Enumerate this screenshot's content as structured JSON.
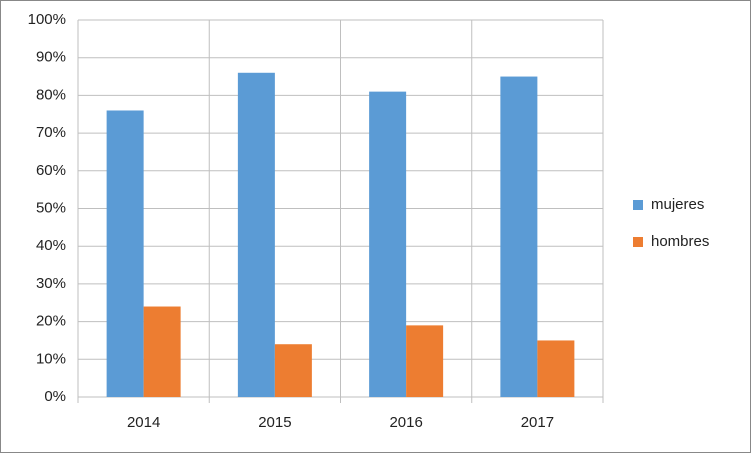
{
  "chart_data": {
    "type": "bar",
    "categories": [
      "2014",
      "2015",
      "2016",
      "2017"
    ],
    "series": [
      {
        "name": "mujeres",
        "color": "#5b9bd5",
        "values": [
          76,
          86,
          81,
          85
        ]
      },
      {
        "name": "hombres",
        "color": "#ed7d31",
        "values": [
          24,
          14,
          19,
          15
        ]
      }
    ],
    "ylim": [
      0,
      100
    ],
    "yticks": [
      {
        "value": 0,
        "label": "0%"
      },
      {
        "value": 10,
        "label": "10%"
      },
      {
        "value": 20,
        "label": "20%"
      },
      {
        "value": 30,
        "label": "30%"
      },
      {
        "value": 40,
        "label": "40%"
      },
      {
        "value": 50,
        "label": "50%"
      },
      {
        "value": 60,
        "label": "60%"
      },
      {
        "value": 70,
        "label": "70%"
      },
      {
        "value": 80,
        "label": "80%"
      },
      {
        "value": 90,
        "label": "90%"
      },
      {
        "value": 100,
        "label": "100%"
      }
    ],
    "grid": true,
    "legend": "right"
  }
}
